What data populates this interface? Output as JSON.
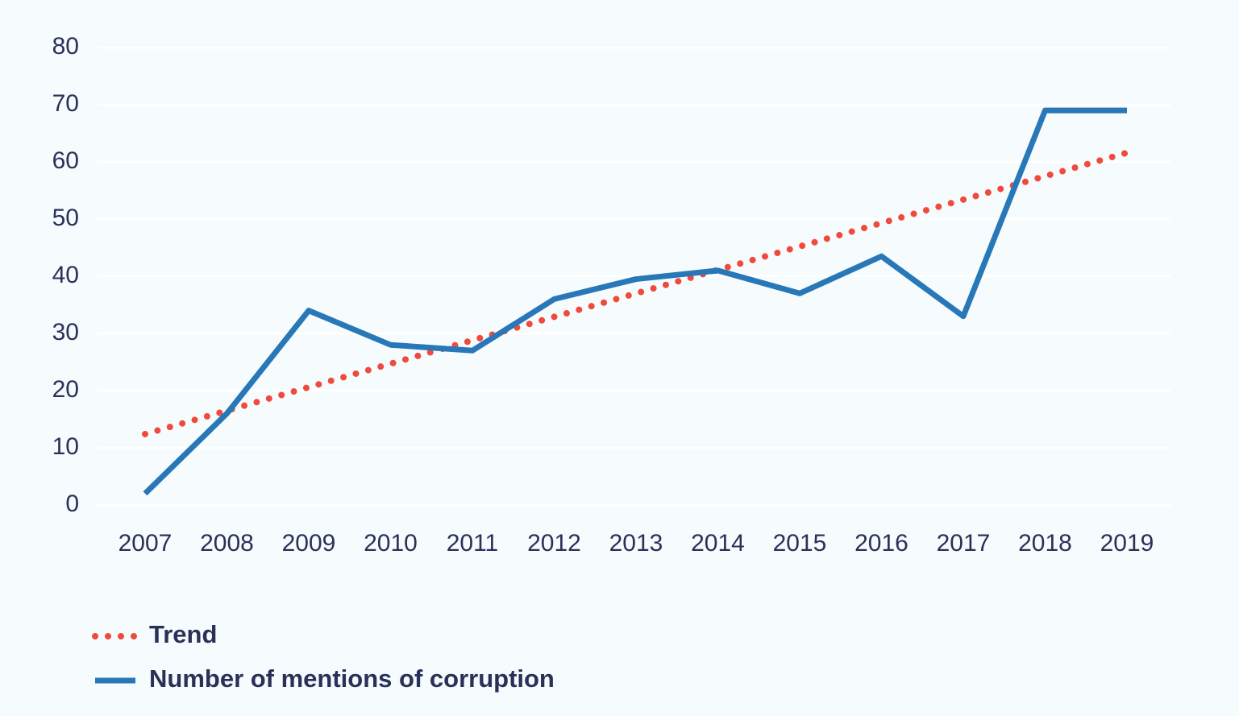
{
  "chart_data": {
    "type": "line",
    "categories": [
      "2007",
      "2008",
      "2009",
      "2010",
      "2011",
      "2012",
      "2013",
      "2014",
      "2015",
      "2016",
      "2017",
      "2018",
      "2019"
    ],
    "series": [
      {
        "name": "Trend",
        "color": "#ef4a3c",
        "dashed": true,
        "values": [
          12.4,
          16.5,
          20.6,
          24.7,
          28.8,
          32.9,
          37.0,
          41.1,
          45.2,
          49.3,
          53.4,
          57.5,
          61.6
        ]
      },
      {
        "name": "Number of mentions of corruption",
        "color": "#2878b8",
        "dashed": false,
        "values": [
          2,
          16,
          34,
          28,
          27,
          36,
          39.5,
          41,
          37,
          43.5,
          33,
          69,
          69
        ]
      }
    ],
    "ylim": [
      0,
      80
    ],
    "yticks": [
      0,
      10,
      20,
      30,
      40,
      50,
      60,
      70,
      80
    ],
    "grid": true
  }
}
